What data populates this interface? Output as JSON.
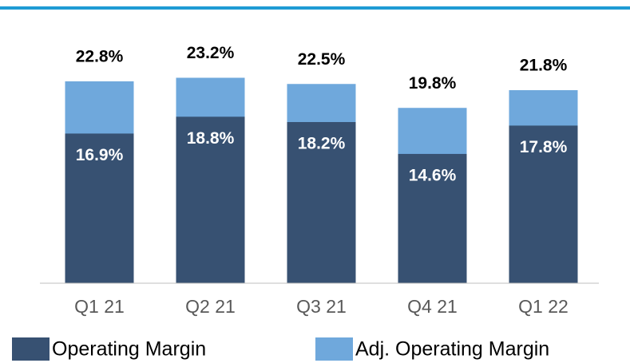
{
  "chart_data": {
    "type": "bar",
    "categories": [
      "Q1 21",
      "Q2 21",
      "Q3 21",
      "Q4 21",
      "Q1 22"
    ],
    "series": [
      {
        "name": "Operating Margin",
        "color": "#375172",
        "values": [
          16.9,
          18.8,
          18.2,
          14.6,
          17.8
        ],
        "value_labels": [
          "16.9%",
          "18.8%",
          "18.2%",
          "14.6%",
          "17.8%"
        ]
      },
      {
        "name": "Adj. Operating Margin",
        "color": "#6fa8dc",
        "values": [
          22.8,
          23.2,
          22.5,
          19.8,
          21.8
        ],
        "value_labels": [
          "22.8%",
          "23.2%",
          "22.5%",
          "19.8%",
          "21.8%"
        ]
      }
    ]
  }
}
